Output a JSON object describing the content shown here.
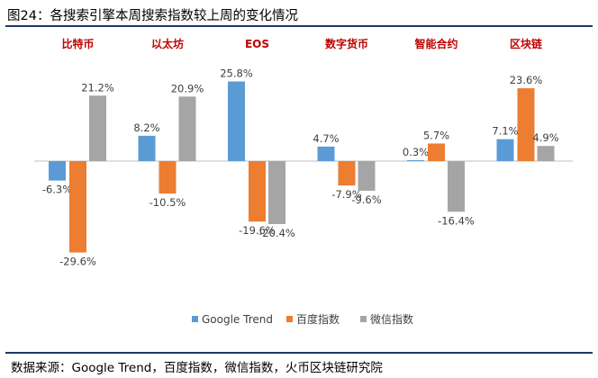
{
  "header": {
    "title": "图24：各搜索引擎本周搜索指数较上周的变化情况"
  },
  "footer": {
    "source": "数据来源：Google Trend，百度指数，微信指数，火币区块链研究院"
  },
  "colors": {
    "Google Trend": "#5b9bd5",
    "百度指数": "#ed7d31",
    "微信指数": "#a5a5a5",
    "category": "#c00000"
  },
  "chart_data": {
    "type": "bar",
    "title": "",
    "categories": [
      "比特币",
      "以太坊",
      "EOS",
      "数字货币",
      "智能合约",
      "区块链"
    ],
    "series": [
      {
        "name": "Google Trend",
        "values": [
          -6.3,
          8.2,
          25.8,
          4.7,
          0.3,
          7.1
        ],
        "labels": [
          "-6.3%",
          "8.2%",
          "25.8%",
          "4.7%",
          "0.3%",
          "7.1%"
        ]
      },
      {
        "name": "百度指数",
        "values": [
          -29.6,
          -10.5,
          -19.6,
          -7.9,
          5.7,
          23.6
        ],
        "labels": [
          "-29.6%",
          "-10.5%",
          "-19.6%",
          "-7.9%",
          "5.7%",
          "23.6%"
        ]
      },
      {
        "name": "微信指数",
        "values": [
          21.2,
          20.9,
          -20.4,
          -9.6,
          -16.4,
          4.9
        ],
        "labels": [
          "21.2%",
          "20.9%",
          "-20.4%",
          "-9.6%",
          "-16.4%",
          "4.9%"
        ]
      }
    ],
    "legend": [
      "Google Trend",
      "百度指数",
      "微信指数"
    ],
    "legend_position": "bottom",
    "xlabel": "",
    "ylabel": "",
    "grid": false
  }
}
